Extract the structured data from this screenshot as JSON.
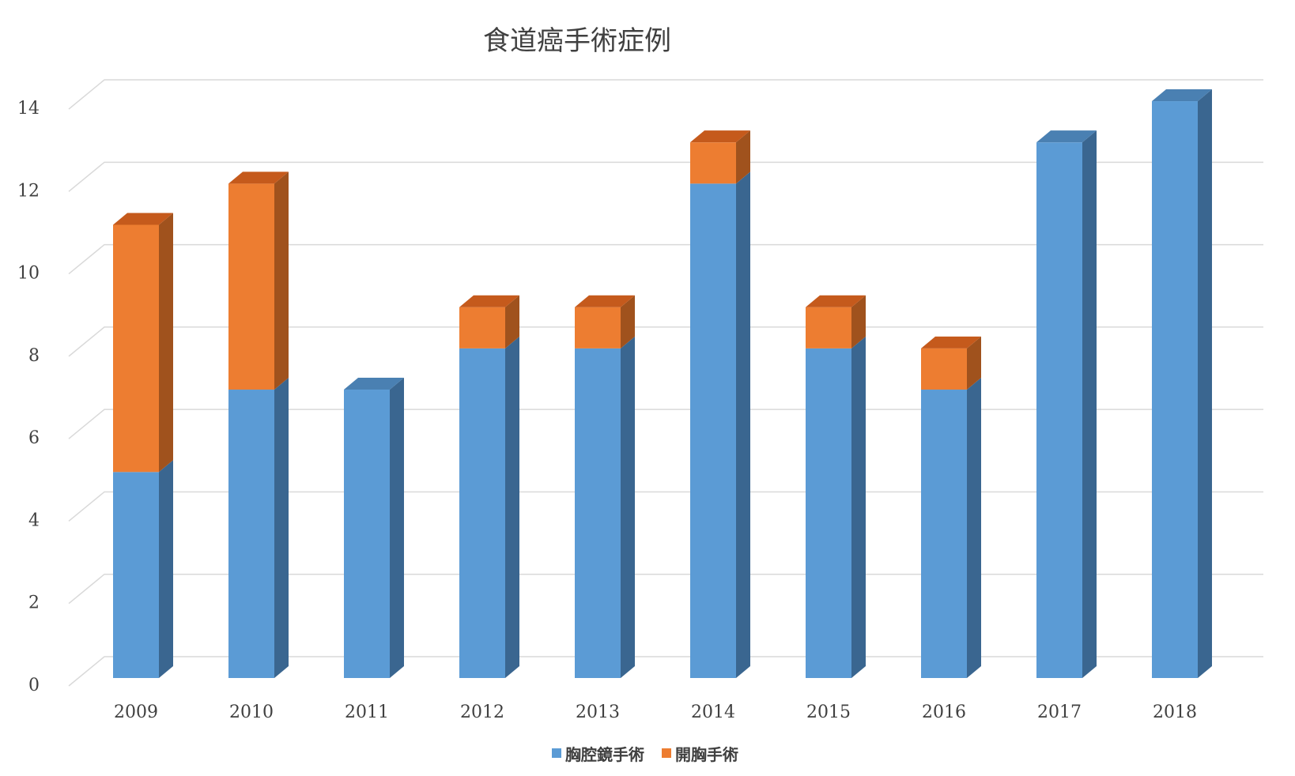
{
  "chart_data": {
    "type": "bar",
    "stacked": true,
    "style": "3d-column",
    "title": "食道癌手術症例",
    "xlabel": "",
    "ylabel": "",
    "categories": [
      "2009",
      "2010",
      "2011",
      "2012",
      "2013",
      "2014",
      "2015",
      "2016",
      "2017",
      "2018"
    ],
    "series": [
      {
        "name": "胸腔鏡手術",
        "values": [
          5,
          7,
          7,
          8,
          8,
          12,
          8,
          7,
          13,
          14
        ]
      },
      {
        "name": "開胸手術",
        "values": [
          6,
          5,
          0,
          1,
          1,
          1,
          1,
          1,
          0,
          0
        ]
      }
    ],
    "ylim": [
      0,
      14
    ],
    "yticks": [
      "0",
      "2",
      "4",
      "6",
      "8",
      "10",
      "12",
      "14"
    ],
    "grid": true,
    "legend": "bottom",
    "colors": {
      "series": [
        "#5B9BD5",
        "#ED7D31"
      ],
      "series_side": [
        "#3A6690",
        "#A0521D"
      ],
      "series_top": [
        "#4A80B2",
        "#C55A1C"
      ]
    }
  }
}
